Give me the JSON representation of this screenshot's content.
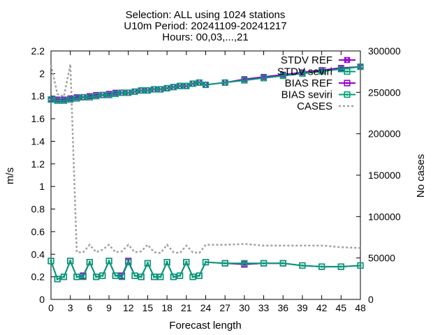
{
  "chart_data": {
    "type": "line",
    "title": [
      "Selection: ALL using  1024 stations",
      "U10m   Period: 20241109-20241217",
      "Hours: 00,03,...,21"
    ],
    "xlabel": "Forecast length",
    "ylabel": "m/s",
    "y2label": "No cases",
    "xlim": [
      0,
      48
    ],
    "ylim": [
      0,
      2.2
    ],
    "y2lim": [
      0,
      300000
    ],
    "xticks": [
      "0",
      "3",
      "6",
      "9",
      "12",
      "15",
      "18",
      "21",
      "24",
      "27",
      "30",
      "33",
      "36",
      "39",
      "42",
      "45",
      "48"
    ],
    "yticks": [
      "0",
      "0.2",
      "0.4",
      "0.6",
      "0.8",
      "1",
      "1.2",
      "1.4",
      "1.6",
      "1.8",
      "2",
      "2.2"
    ],
    "y2ticks": [
      "0",
      "50000",
      "100000",
      "150000",
      "200000",
      "250000",
      "300000"
    ],
    "legend_position": "top-right",
    "series": [
      {
        "name": "STDV REF",
        "color": "#9400d3",
        "marker": "x-square",
        "axis": "y",
        "x": [
          0,
          1,
          2,
          3,
          4,
          5,
          6,
          7,
          8,
          9,
          10,
          11,
          12,
          13,
          14,
          15,
          16,
          17,
          18,
          19,
          20,
          21,
          22,
          23,
          24,
          27,
          30,
          33,
          36,
          39,
          42,
          45,
          48
        ],
        "y": [
          1.77,
          1.77,
          1.77,
          1.78,
          1.79,
          1.79,
          1.8,
          1.81,
          1.81,
          1.82,
          1.83,
          1.83,
          1.83,
          1.84,
          1.85,
          1.85,
          1.86,
          1.86,
          1.87,
          1.88,
          1.89,
          1.89,
          1.91,
          1.92,
          1.9,
          1.92,
          1.95,
          1.97,
          1.99,
          2.01,
          2.03,
          2.05,
          2.06
        ]
      },
      {
        "name": "STDV seviri",
        "color": "#009e73",
        "marker": "square",
        "axis": "y",
        "x": [
          0,
          1,
          2,
          3,
          4,
          5,
          6,
          7,
          8,
          9,
          10,
          11,
          12,
          13,
          14,
          15,
          16,
          17,
          18,
          19,
          20,
          21,
          22,
          23,
          24,
          27,
          30,
          33,
          36,
          39,
          42,
          45,
          48
        ],
        "y": [
          1.77,
          1.76,
          1.76,
          1.77,
          1.78,
          1.79,
          1.79,
          1.8,
          1.81,
          1.81,
          1.82,
          1.83,
          1.83,
          1.84,
          1.85,
          1.85,
          1.86,
          1.86,
          1.87,
          1.88,
          1.89,
          1.89,
          1.91,
          1.92,
          1.9,
          1.92,
          1.94,
          1.96,
          1.98,
          2.0,
          2.02,
          2.04,
          2.06
        ]
      },
      {
        "name": "BIAS REF",
        "color": "#9400d3",
        "marker": "square",
        "axis": "y",
        "x": [
          0,
          1,
          2,
          3,
          4,
          5,
          6,
          7,
          8,
          9,
          10,
          11,
          12,
          13,
          14,
          15,
          16,
          17,
          18,
          19,
          20,
          21,
          22,
          23,
          24,
          27,
          30,
          33,
          36,
          39,
          42,
          45,
          48
        ],
        "y": [
          0.34,
          0.18,
          0.2,
          0.34,
          0.2,
          0.21,
          0.33,
          0.2,
          0.21,
          0.34,
          0.21,
          0.21,
          0.34,
          0.21,
          0.2,
          0.32,
          0.2,
          0.2,
          0.33,
          0.2,
          0.21,
          0.33,
          0.2,
          0.21,
          0.33,
          0.32,
          0.31,
          0.32,
          0.32,
          0.3,
          0.29,
          0.29,
          0.3
        ]
      },
      {
        "name": "BIAS seviri",
        "color": "#009e73",
        "marker": "square",
        "axis": "y",
        "x": [
          0,
          1,
          2,
          3,
          4,
          5,
          6,
          7,
          8,
          9,
          10,
          11,
          12,
          13,
          14,
          15,
          16,
          17,
          18,
          19,
          20,
          21,
          22,
          23,
          24,
          27,
          30,
          33,
          36,
          39,
          42,
          45,
          48
        ],
        "y": [
          0.34,
          0.18,
          0.2,
          0.34,
          0.2,
          0.2,
          0.33,
          0.2,
          0.21,
          0.34,
          0.21,
          0.2,
          0.33,
          0.21,
          0.2,
          0.32,
          0.2,
          0.2,
          0.33,
          0.2,
          0.21,
          0.33,
          0.2,
          0.21,
          0.33,
          0.32,
          0.32,
          0.32,
          0.32,
          0.3,
          0.29,
          0.29,
          0.3
        ]
      },
      {
        "name": "CASES",
        "color": "#a0a0a0",
        "dash": true,
        "axis": "y2",
        "x": [
          0,
          1,
          2,
          3,
          4,
          5,
          6,
          7,
          8,
          9,
          10,
          11,
          12,
          13,
          14,
          15,
          16,
          17,
          18,
          19,
          20,
          21,
          22,
          23,
          24,
          27,
          30,
          33,
          36,
          39,
          42,
          45,
          48
        ],
        "y": [
          283000,
          248000,
          245000,
          284000,
          57000,
          57000,
          66000,
          57000,
          60000,
          66000,
          57000,
          58000,
          66000,
          57000,
          58000,
          66000,
          57000,
          56000,
          66000,
          57000,
          56000,
          65000,
          57000,
          56000,
          66000,
          66000,
          67000,
          65000,
          65000,
          65000,
          65000,
          63000,
          62000
        ]
      }
    ]
  }
}
